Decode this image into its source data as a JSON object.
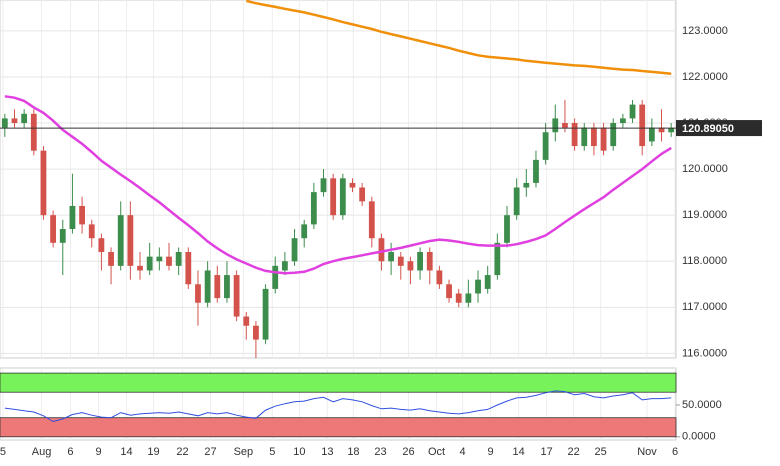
{
  "chart_data": [
    {
      "type": "candlestick",
      "xlim": [
        -0.5,
        69.5
      ],
      "xticks": [
        {
          "value": -0.2,
          "label": "5"
        },
        {
          "value": 3.8,
          "label": "Aug"
        },
        {
          "value": 6.8,
          "label": "6"
        },
        {
          "value": 9.7,
          "label": "9"
        },
        {
          "value": 12.6,
          "label": "14"
        },
        {
          "value": 15.4,
          "label": "19"
        },
        {
          "value": 18.4,
          "label": "22"
        },
        {
          "value": 21.3,
          "label": "27"
        },
        {
          "value": 24.7,
          "label": "Sep"
        },
        {
          "value": 27.7,
          "label": "5"
        },
        {
          "value": 30.5,
          "label": "10"
        },
        {
          "value": 33.4,
          "label": "13"
        },
        {
          "value": 36.1,
          "label": "18"
        },
        {
          "value": 38.9,
          "label": "23"
        },
        {
          "value": 41.8,
          "label": "26"
        },
        {
          "value": 44.7,
          "label": "Oct"
        },
        {
          "value": 47.4,
          "label": "4"
        },
        {
          "value": 50.3,
          "label": "9"
        },
        {
          "value": 53.2,
          "label": "14"
        },
        {
          "value": 56.1,
          "label": "17"
        },
        {
          "value": 58.9,
          "label": "22"
        },
        {
          "value": 61.7,
          "label": "25"
        },
        {
          "value": 66.5,
          "label": "Nov"
        },
        {
          "value": 69.4,
          "label": "6"
        }
      ],
      "ylim": [
        115.9,
        123.67
      ],
      "yticks": [
        {
          "value": 116,
          "label": "116.0000"
        },
        {
          "value": 117,
          "label": "117.0000"
        },
        {
          "value": 118,
          "label": "118.0000"
        },
        {
          "value": 119,
          "label": "119.0000"
        },
        {
          "value": 120,
          "label": "120.0000"
        },
        {
          "value": 121,
          "label": "121.0000"
        },
        {
          "value": 122,
          "label": "122.0000"
        },
        {
          "value": 123,
          "label": "123.0000"
        }
      ],
      "grid": true,
      "up_color": "#3c8c4c",
      "down_color": "#d4524c",
      "open": [
        120.9,
        121.1,
        121.0,
        121.2,
        120.4,
        119.0,
        118.4,
        118.7,
        119.2,
        118.8,
        118.5,
        118.2,
        117.9,
        119.0,
        117.9,
        117.8,
        118.0,
        118.1,
        117.9,
        118.2,
        117.5,
        117.1,
        117.7,
        117.2,
        117.7,
        116.8,
        116.6,
        116.3,
        117.4,
        117.8,
        118.0,
        118.5,
        118.8,
        119.5,
        119.8,
        119.0,
        119.7,
        119.6,
        119.3,
        118.5,
        118.0,
        118.1,
        118.0,
        117.8,
        118.2,
        117.8,
        117.5,
        117.3,
        117.1,
        117.3,
        117.4,
        117.7,
        118.4,
        119.0,
        119.6,
        119.7,
        120.2,
        120.8,
        121.0,
        121.0,
        120.5,
        120.9,
        120.9,
        120.5,
        121.0,
        121.1,
        121.4,
        120.6,
        120.9,
        120.8
      ],
      "high": [
        121.2,
        121.3,
        121.3,
        121.3,
        120.5,
        119.1,
        118.9,
        119.9,
        119.4,
        118.9,
        118.6,
        118.3,
        119.3,
        119.3,
        118.2,
        118.4,
        118.3,
        118.4,
        118.3,
        118.3,
        117.8,
        118.0,
        117.9,
        118.0,
        117.8,
        116.9,
        116.7,
        117.5,
        118.1,
        118.2,
        118.7,
        118.9,
        119.7,
        120.0,
        119.9,
        119.9,
        119.8,
        119.7,
        119.4,
        118.6,
        118.4,
        118.2,
        118.1,
        118.3,
        118.3,
        117.9,
        117.6,
        117.4,
        117.6,
        117.8,
        117.9,
        118.6,
        119.2,
        119.8,
        120.0,
        120.4,
        121.0,
        121.4,
        121.5,
        121.1,
        121.0,
        121.0,
        121.0,
        121.1,
        121.2,
        121.5,
        121.5,
        121.1,
        121.3,
        121.0
      ],
      "low": [
        120.7,
        120.9,
        120.9,
        120.3,
        118.9,
        118.3,
        117.7,
        118.6,
        118.6,
        118.3,
        117.8,
        117.5,
        117.8,
        117.6,
        117.6,
        117.7,
        117.8,
        117.8,
        117.7,
        117.4,
        116.6,
        117.0,
        117.1,
        117.1,
        116.7,
        116.3,
        115.9,
        116.2,
        117.3,
        117.7,
        117.9,
        118.3,
        118.7,
        119.4,
        118.9,
        118.9,
        119.5,
        119.2,
        118.3,
        117.8,
        117.7,
        117.6,
        117.5,
        117.6,
        117.5,
        117.4,
        117.1,
        117.0,
        117.0,
        117.1,
        117.3,
        117.6,
        118.3,
        118.9,
        119.4,
        119.6,
        120.1,
        120.6,
        120.8,
        120.4,
        120.4,
        120.3,
        120.3,
        120.4,
        120.9,
        121.0,
        120.3,
        120.5,
        120.6,
        120.7
      ],
      "close": [
        121.1,
        121.0,
        121.2,
        120.4,
        119.0,
        118.4,
        118.7,
        119.2,
        118.8,
        118.5,
        118.2,
        117.9,
        119.0,
        117.9,
        117.8,
        118.1,
        118.1,
        117.9,
        118.2,
        117.5,
        117.1,
        117.8,
        117.2,
        117.7,
        116.8,
        116.6,
        116.3,
        117.4,
        117.9,
        118.0,
        118.5,
        118.8,
        119.5,
        119.8,
        119.0,
        119.8,
        119.6,
        119.3,
        118.5,
        118.0,
        118.2,
        117.9,
        117.8,
        118.2,
        117.8,
        117.5,
        117.2,
        117.1,
        117.3,
        117.6,
        117.7,
        118.4,
        119.0,
        119.6,
        119.7,
        120.2,
        120.8,
        121.1,
        120.9,
        120.5,
        120.9,
        120.5,
        120.4,
        121.0,
        121.1,
        121.4,
        120.5,
        120.9,
        120.8,
        120.89
      ],
      "series": [
        {
          "color": "#f0900a",
          "values": [
            null,
            null,
            null,
            null,
            null,
            null,
            null,
            null,
            null,
            null,
            null,
            null,
            null,
            null,
            null,
            null,
            null,
            null,
            null,
            null,
            null,
            null,
            null,
            null,
            null,
            123.65,
            123.6,
            123.56,
            123.52,
            123.48,
            123.44,
            123.4,
            123.35,
            123.3,
            123.25,
            123.19,
            123.14,
            123.09,
            123.04,
            122.98,
            122.93,
            122.88,
            122.83,
            122.78,
            122.73,
            122.68,
            122.63,
            122.57,
            122.52,
            122.47,
            122.44,
            122.42,
            122.4,
            122.38,
            122.35,
            122.33,
            122.31,
            122.29,
            122.27,
            122.25,
            122.24,
            122.22,
            122.2,
            122.18,
            122.16,
            122.15,
            122.13,
            122.11,
            122.09,
            122.07
          ]
        },
        {
          "color": "#e040e0",
          "values": [
            121.58,
            121.55,
            121.48,
            121.34,
            121.22,
            121.05,
            120.85,
            120.7,
            120.55,
            120.37,
            120.18,
            120.03,
            119.88,
            119.74,
            119.59,
            119.43,
            119.28,
            119.11,
            118.94,
            118.78,
            118.61,
            118.43,
            118.28,
            118.15,
            118.04,
            117.95,
            117.86,
            117.79,
            117.76,
            117.74,
            117.75,
            117.77,
            117.84,
            117.94,
            118.0,
            118.05,
            118.09,
            118.13,
            118.17,
            118.21,
            118.25,
            118.29,
            118.34,
            118.39,
            118.44,
            118.47,
            118.45,
            118.42,
            118.38,
            118.35,
            118.34,
            118.34,
            118.34,
            118.37,
            118.42,
            118.48,
            118.56,
            118.7,
            118.85,
            118.99,
            119.13,
            119.26,
            119.39,
            119.55,
            119.7,
            119.85,
            120.0,
            120.17,
            120.33,
            120.46
          ]
        }
      ],
      "last_price": {
        "value": 120.8905,
        "label": "120.89050"
      }
    },
    {
      "type": "line",
      "ylim": [
        -5,
        108
      ],
      "yticks": [
        {
          "value": 50,
          "label": "50.0000"
        },
        {
          "value": 0,
          "label": "0.0000"
        }
      ],
      "bands": [
        {
          "from": 70,
          "to": 100,
          "color": "#77f25a"
        },
        {
          "from": 0,
          "to": 30,
          "color": "#ec7878"
        }
      ],
      "series": [
        {
          "color": "#3050e0",
          "values": [
            45,
            43,
            41,
            39,
            33,
            24,
            28,
            35,
            38,
            34,
            31,
            30,
            38,
            34,
            36,
            37,
            38,
            37,
            39,
            36,
            33,
            38,
            36,
            38,
            34,
            31,
            29,
            42,
            48,
            52,
            55,
            56,
            60,
            62,
            55,
            60,
            58,
            55,
            49,
            44,
            45,
            43,
            42,
            44,
            41,
            39,
            37,
            36,
            38,
            41,
            43,
            50,
            56,
            61,
            62,
            65,
            69,
            72,
            71,
            66,
            68,
            63,
            61,
            64,
            66,
            69,
            58,
            60,
            60,
            61
          ]
        }
      ]
    }
  ]
}
